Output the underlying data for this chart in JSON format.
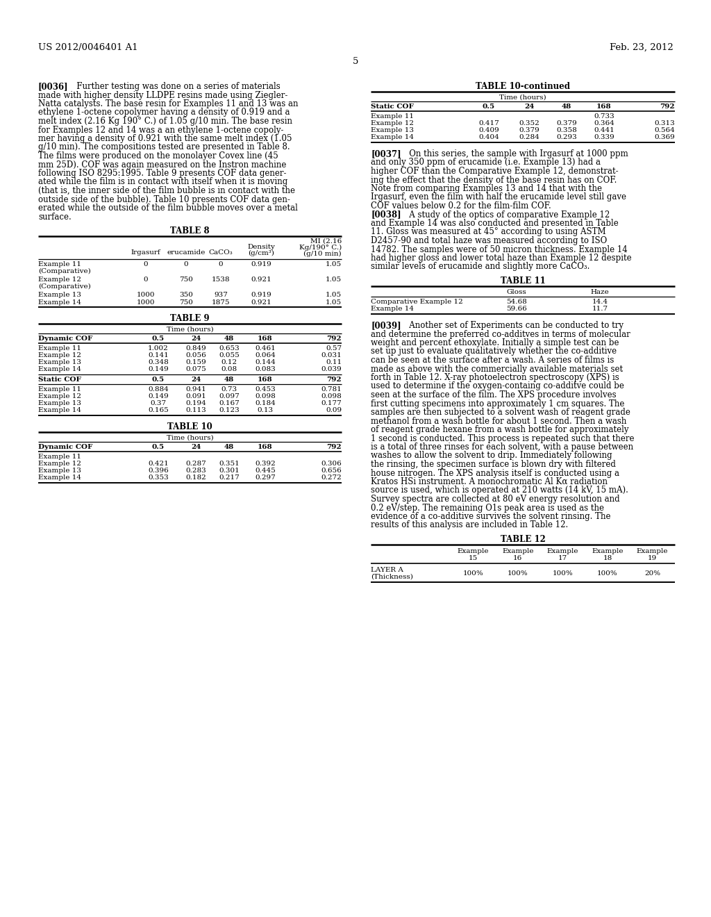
{
  "header_left": "US 2012/0046401 A1",
  "header_right": "Feb. 23, 2012",
  "page_number": "5",
  "table8_title": "TABLE 8",
  "table8_rows": [
    [
      "Example 11\n(Comparative)",
      "0",
      "0",
      "0",
      "0.919",
      "1.05"
    ],
    [
      "Example 12\n(Comparative)",
      "0",
      "750",
      "1538",
      "0.921",
      "1.05"
    ],
    [
      "Example 13",
      "1000",
      "350",
      "937",
      "0.919",
      "1.05"
    ],
    [
      "Example 14",
      "1000",
      "750",
      "1875",
      "0.921",
      "1.05"
    ]
  ],
  "table9_title": "TABLE 9",
  "table9_time_header": "Time (hours)",
  "table9_col_headers": [
    "Dynamic COF",
    "0.5",
    "24",
    "48",
    "168",
    "792"
  ],
  "table9_data_rows": [
    [
      "Example 11",
      "1.002",
      "0.849",
      "0.653",
      "0.461",
      "0.57"
    ],
    [
      "Example 12",
      "0.141",
      "0.056",
      "0.055",
      "0.064",
      "0.031"
    ],
    [
      "Example 13",
      "0.348",
      "0.159",
      "0.12",
      "0.144",
      "0.11"
    ],
    [
      "Example 14",
      "0.149",
      "0.075",
      "0.08",
      "0.083",
      "0.039"
    ]
  ],
  "table9_static_header": [
    "Static COF",
    "0.5",
    "24",
    "48",
    "168",
    "792"
  ],
  "table9_static_rows": [
    [
      "Example 11",
      "0.884",
      "0.941",
      "0.73",
      "0.453",
      "0.781"
    ],
    [
      "Example 12",
      "0.149",
      "0.091",
      "0.097",
      "0.098",
      "0.098"
    ],
    [
      "Example 13",
      "0.37",
      "0.194",
      "0.167",
      "0.184",
      "0.177"
    ],
    [
      "Example 14",
      "0.165",
      "0.113",
      "0.123",
      "0.13",
      "0.09"
    ]
  ],
  "table10_title": "TABLE 10",
  "table10_time_header": "Time (hours)",
  "table10_col_headers": [
    "Dynamic COF",
    "0.5",
    "24",
    "48",
    "168",
    "792"
  ],
  "table10_data_rows": [
    [
      "Example 11",
      "",
      "",
      "",
      "",
      ""
    ],
    [
      "Example 12",
      "0.421",
      "0.287",
      "0.351",
      "0.392",
      "0.306"
    ],
    [
      "Example 13",
      "0.396",
      "0.283",
      "0.301",
      "0.445",
      "0.656"
    ],
    [
      "Example 14",
      "0.353",
      "0.182",
      "0.217",
      "0.297",
      "0.272"
    ]
  ],
  "table10cont_title": "TABLE 10-continued",
  "table10cont_time_header": "Time (hours)",
  "table10cont_static_header": [
    "Static COF",
    "0.5",
    "24",
    "48",
    "168",
    "792"
  ],
  "table10cont_rows": [
    [
      "Example 11",
      "",
      "",
      "",
      "0.733",
      ""
    ],
    [
      "Example 12",
      "0.417",
      "0.352",
      "0.379",
      "0.364",
      "0.313"
    ],
    [
      "Example 13",
      "0.409",
      "0.379",
      "0.358",
      "0.441",
      "0.564"
    ],
    [
      "Example 14",
      "0.404",
      "0.284",
      "0.293",
      "0.339",
      "0.369"
    ]
  ],
  "table11_title": "TABLE 11",
  "table11_rows": [
    [
      "Comparative Example 12",
      "54.68",
      "14.4"
    ],
    [
      "Example 14",
      "59.66",
      "11.7"
    ]
  ],
  "table12_title": "TABLE 12",
  "table12_first_row_values": [
    "100%",
    "100%",
    "100%",
    "100%",
    "20%"
  ],
  "lines_0036": [
    "[0036]    Further testing was done on a series of materials",
    "made with higher density LLDPE resins made using Ziegler-",
    "Natta catalysts. The base resin for Examples 11 and 13 was an",
    "ethylene 1-octene copolymer having a density of 0.919 and a",
    "melt index (2.16 Kg 190° C.) of 1.05 g/10 min. The base resin",
    "for Examples 12 and 14 was a an ethylene 1-octene copoly-",
    "mer having a density of 0.921 with the same melt index (1.05",
    "g/10 min). The compositions tested are presented in Table 8.",
    "The films were produced on the monolayer Covex line (45",
    "mm 25D). COF was again measured on the Instron machine",
    "following ISO 8295:1995. Table 9 presents COF data gener-",
    "ated while the film is in contact with itself when it is moving",
    "(that is, the inner side of the film bubble is in contact with the",
    "outside side of the bubble). Table 10 presents COF data gen-",
    "erated while the outside of the film bubble moves over a metal",
    "surface."
  ],
  "lines_0037": [
    "[0037]    On this series, the sample with Irgasurf at 1000 ppm",
    "and only 350 ppm of erucamide (i.e. Example 13) had a",
    "higher COF than the Comparative Example 12, demonstrat-",
    "ing the effect that the density of the base resin has on COF.",
    "Note from comparing Examples 13 and 14 that with the",
    "Irgasurf, even the film with half the erucamide level still gave",
    "COF values below 0.2 for the film-film COF."
  ],
  "lines_0038": [
    "[0038]    A study of the optics of comparative Example 12",
    "and Example 14 was also conducted and presented in Table",
    "11. Gloss was measured at 45° according to using ASTM",
    "D2457-90 and total haze was measured according to ISO",
    "14782. The samples were of 50 micron thickness. Example 14",
    "had higher gloss and lower total haze than Example 12 despite",
    "similar levels of erucamide and slightly more CaCO₃."
  ],
  "lines_0039": [
    "[0039]    Another set of Experiments can be conducted to try",
    "and determine the preferred co-additves in terms of molecular",
    "weight and percent ethoxylate. Initially a simple test can be",
    "set up just to evaluate qualitatively whether the co-additive",
    "can be seen at the surface after a wash. A series of films is",
    "made as above with the commercially available materials set",
    "forth in Table 12. X-ray photoelectron spectroscopy (XPS) is",
    "used to determine if the oxygen-containg co-additve could be",
    "seen at the surface of the film. The XPS procedure involves",
    "first cutting specimens into approximately 1 cm squares. The",
    "samples are then subjected to a solvent wash of reagent grade",
    "methanol from a wash bottle for about 1 second. Then a wash",
    "of reagent grade hexane from a wash bottle for approximately",
    "1 second is conducted. This process is repeated such that there",
    "is a total of three rinses for each solvent, with a pause between",
    "washes to allow the solvent to drip. Immediately following",
    "the rinsing, the specimen surface is blown dry with filtered",
    "house nitrogen. The XPS analysis itself is conducted using a",
    "Kratos HSi instrument. A monochromatic Al Kα radiation",
    "source is used, which is operated at 210 watts (14 kV, 15 mA).",
    "Survey spectra are collected at 80 eV energy resolution and",
    "0.2 eV/step. The remaining O1s peak area is used as the",
    "evidence of a co-additive survives the solvent rinsing. The",
    "results of this analysis are included in Table 12."
  ]
}
